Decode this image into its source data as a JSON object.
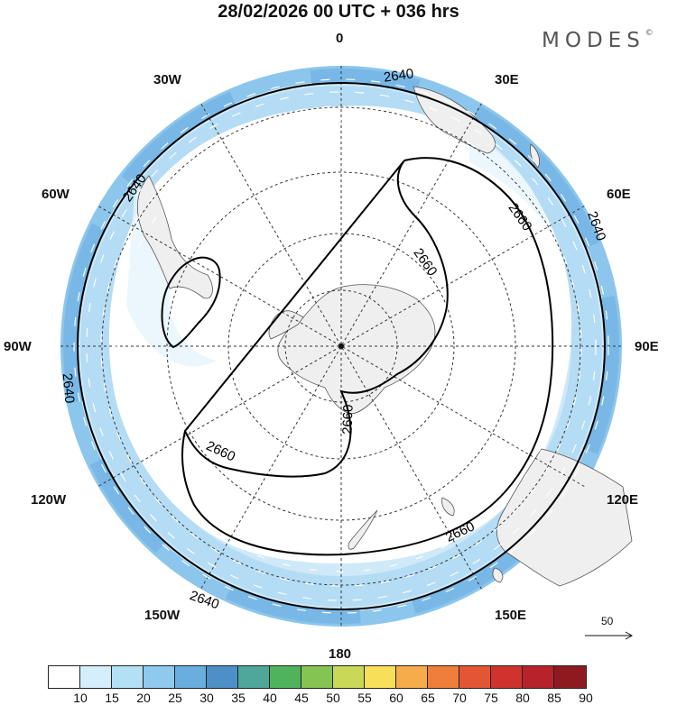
{
  "title": "28/02/2026  00 UTC  + 036 hrs",
  "brand": "MODES",
  "brand_mark": "©",
  "longitude_labels": {
    "l0": "0",
    "l30e": "30E",
    "l60e": "60E",
    "l90e": "90E",
    "l120e": "120E",
    "l150e": "150E",
    "l180": "180",
    "l150w": "150W",
    "l120w": "120W",
    "l90w": "90W",
    "l60w": "60W",
    "l30w": "30W"
  },
  "contour_labels": {
    "c2640_top": "2640",
    "c2640_left": "2640",
    "c2640_right": "2640",
    "c2640_leftlow": "2640",
    "c2640_bottom": "2640",
    "c2660_a": "2660",
    "c2660_b": "2660",
    "c2660_c": "2660",
    "c2660_d": "2660",
    "c2660_e": "2660"
  },
  "vector_scale": {
    "label": "50"
  },
  "colorbar": {
    "colors": [
      "#ffffff",
      "#d4eefb",
      "#b4e0f6",
      "#8fcaee",
      "#6aaee0",
      "#4d8fc6",
      "#4fa69b",
      "#4fb35d",
      "#85c452",
      "#c9d957",
      "#f8df5a",
      "#f6ac4a",
      "#ef7e3b",
      "#e35633",
      "#d0332d",
      "#b8222a",
      "#8e1a1f"
    ],
    "ticks": [
      "10",
      "15",
      "20",
      "25",
      "30",
      "35",
      "40",
      "45",
      "50",
      "55",
      "60",
      "65",
      "70",
      "75",
      "80",
      "85",
      "90"
    ]
  }
}
